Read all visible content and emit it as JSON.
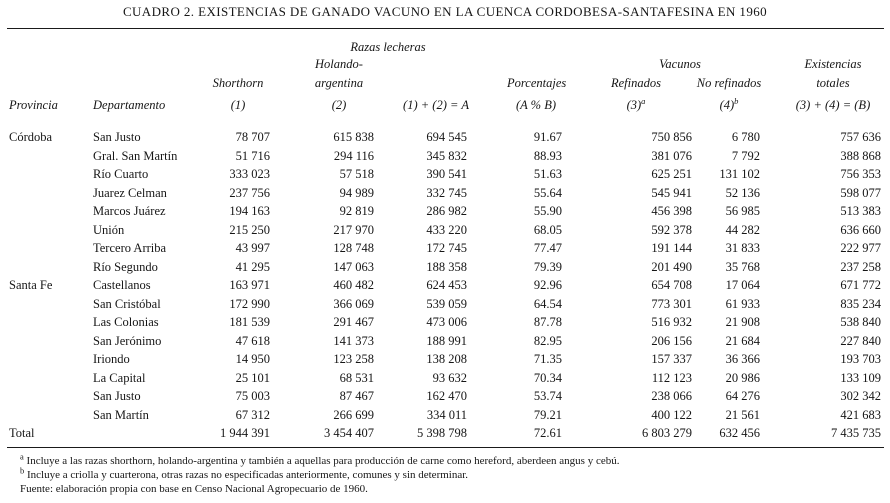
{
  "title": "CUADRO 2. EXISTENCIAS DE GANADO VACUNO EN LA CUENCA CORDOBESA-SANTAFESINA EN 1960",
  "table": {
    "group_headers": {
      "razas_lecheras": "Razas lecheras",
      "vacunos": "Vacunos"
    },
    "header": {
      "provincia": "Provincia",
      "departamento": "Departamento",
      "shorthorn_line1": "Shorthorn",
      "shorthorn_line2": "(1)",
      "holando_line1": "Holando-",
      "holando_line2": "argentina",
      "holando_line3": "(2)",
      "suma_a": "(1) + (2) = A",
      "porcentajes_line1": "Porcentajes",
      "porcentajes_line2": "(A % B)",
      "refinados_line1": "Refinados",
      "refinados_code": "(3)",
      "refinados_sup": "a",
      "no_refinados_line1": "No refinados",
      "no_refinados_code": "(4)",
      "no_refinados_sup": "b",
      "existencias_line1": "Existencias",
      "existencias_line2": "totales",
      "existencias_line3": "(3) + (4) = (B)"
    },
    "rows": [
      {
        "provincia": "Córdoba",
        "departamento": "San Justo",
        "shorthorn": "78 707",
        "holando": "615 838",
        "suma_a": "694 545",
        "porcentaje": "91.67",
        "refinados": "750 856",
        "no_refinados": "6 780",
        "total": "757 636"
      },
      {
        "provincia": "",
        "departamento": "Gral. San Martín",
        "shorthorn": "51 716",
        "holando": "294 116",
        "suma_a": "345 832",
        "porcentaje": "88.93",
        "refinados": "381 076",
        "no_refinados": "7 792",
        "total": "388 868"
      },
      {
        "provincia": "",
        "departamento": "Río Cuarto",
        "shorthorn": "333 023",
        "holando": "57 518",
        "suma_a": "390 541",
        "porcentaje": "51.63",
        "refinados": "625 251",
        "no_refinados": "131 102",
        "total": "756 353"
      },
      {
        "provincia": "",
        "departamento": "Juarez Celman",
        "shorthorn": "237 756",
        "holando": "94 989",
        "suma_a": "332 745",
        "porcentaje": "55.64",
        "refinados": "545 941",
        "no_refinados": "52 136",
        "total": "598 077"
      },
      {
        "provincia": "",
        "departamento": "Marcos Juárez",
        "shorthorn": "194 163",
        "holando": "92 819",
        "suma_a": "286 982",
        "porcentaje": "55.90",
        "refinados": "456 398",
        "no_refinados": "56 985",
        "total": "513 383"
      },
      {
        "provincia": "",
        "departamento": "Unión",
        "shorthorn": "215 250",
        "holando": "217 970",
        "suma_a": "433 220",
        "porcentaje": "68.05",
        "refinados": "592 378",
        "no_refinados": "44 282",
        "total": "636 660"
      },
      {
        "provincia": "",
        "departamento": "Tercero Arriba",
        "shorthorn": "43 997",
        "holando": "128 748",
        "suma_a": "172 745",
        "porcentaje": "77.47",
        "refinados": "191 144",
        "no_refinados": "31 833",
        "total": "222 977"
      },
      {
        "provincia": "",
        "departamento": "Río Segundo",
        "shorthorn": "41 295",
        "holando": "147 063",
        "suma_a": "188 358",
        "porcentaje": "79.39",
        "refinados": "201 490",
        "no_refinados": "35 768",
        "total": "237 258"
      },
      {
        "provincia": "Santa Fe",
        "departamento": "Castellanos",
        "shorthorn": "163 971",
        "holando": "460 482",
        "suma_a": "624 453",
        "porcentaje": "92.96",
        "refinados": "654 708",
        "no_refinados": "17 064",
        "total": "671 772"
      },
      {
        "provincia": "",
        "departamento": "San Cristóbal",
        "shorthorn": "172 990",
        "holando": "366 069",
        "suma_a": "539 059",
        "porcentaje": "64.54",
        "refinados": "773 301",
        "no_refinados": "61 933",
        "total": "835 234"
      },
      {
        "provincia": "",
        "departamento": "Las Colonias",
        "shorthorn": "181 539",
        "holando": "291 467",
        "suma_a": "473 006",
        "porcentaje": "87.78",
        "refinados": "516 932",
        "no_refinados": "21 908",
        "total": "538 840"
      },
      {
        "provincia": "",
        "departamento": "San Jerónimo",
        "shorthorn": "47 618",
        "holando": "141 373",
        "suma_a": "188 991",
        "porcentaje": "82.95",
        "refinados": "206 156",
        "no_refinados": "21 684",
        "total": "227 840"
      },
      {
        "provincia": "",
        "departamento": "Iriondo",
        "shorthorn": "14 950",
        "holando": "123 258",
        "suma_a": "138 208",
        "porcentaje": "71.35",
        "refinados": "157 337",
        "no_refinados": "36 366",
        "total": "193 703"
      },
      {
        "provincia": "",
        "departamento": "La Capital",
        "shorthorn": "25 101",
        "holando": "68 531",
        "suma_a": "93 632",
        "porcentaje": "70.34",
        "refinados": "112 123",
        "no_refinados": "20 986",
        "total": "133 109"
      },
      {
        "provincia": "",
        "departamento": "San Justo",
        "shorthorn": "75 003",
        "holando": "87 467",
        "suma_a": "162 470",
        "porcentaje": "53.74",
        "refinados": "238 066",
        "no_refinados": "64 276",
        "total": "302 342"
      },
      {
        "provincia": "",
        "departamento": "San Martín",
        "shorthorn": "67 312",
        "holando": "266 699",
        "suma_a": "334 011",
        "porcentaje": "79.21",
        "refinados": "400 122",
        "no_refinados": "21 561",
        "total": "421 683"
      },
      {
        "provincia": "Total",
        "departamento": "",
        "shorthorn": "1 944 391",
        "holando": "3 454 407",
        "suma_a": "5 398 798",
        "porcentaje": "72.61",
        "refinados": "6 803 279",
        "no_refinados": "632 456",
        "total": "7 435 735"
      }
    ]
  },
  "footnotes": [
    {
      "sup": "a",
      "text": "Incluye a las razas shorthorn, holando-argentina y también a aquellas para producción de carne como hereford, aberdeen angus y cebú."
    },
    {
      "sup": "b",
      "text": "Incluye a criolla y cuarterona, otras razas no especificadas anteriormente, comunes y sin determinar."
    },
    {
      "sup": "",
      "text": "Fuente: elaboración propia con base en Censo Nacional Agropecuario de 1960."
    }
  ]
}
